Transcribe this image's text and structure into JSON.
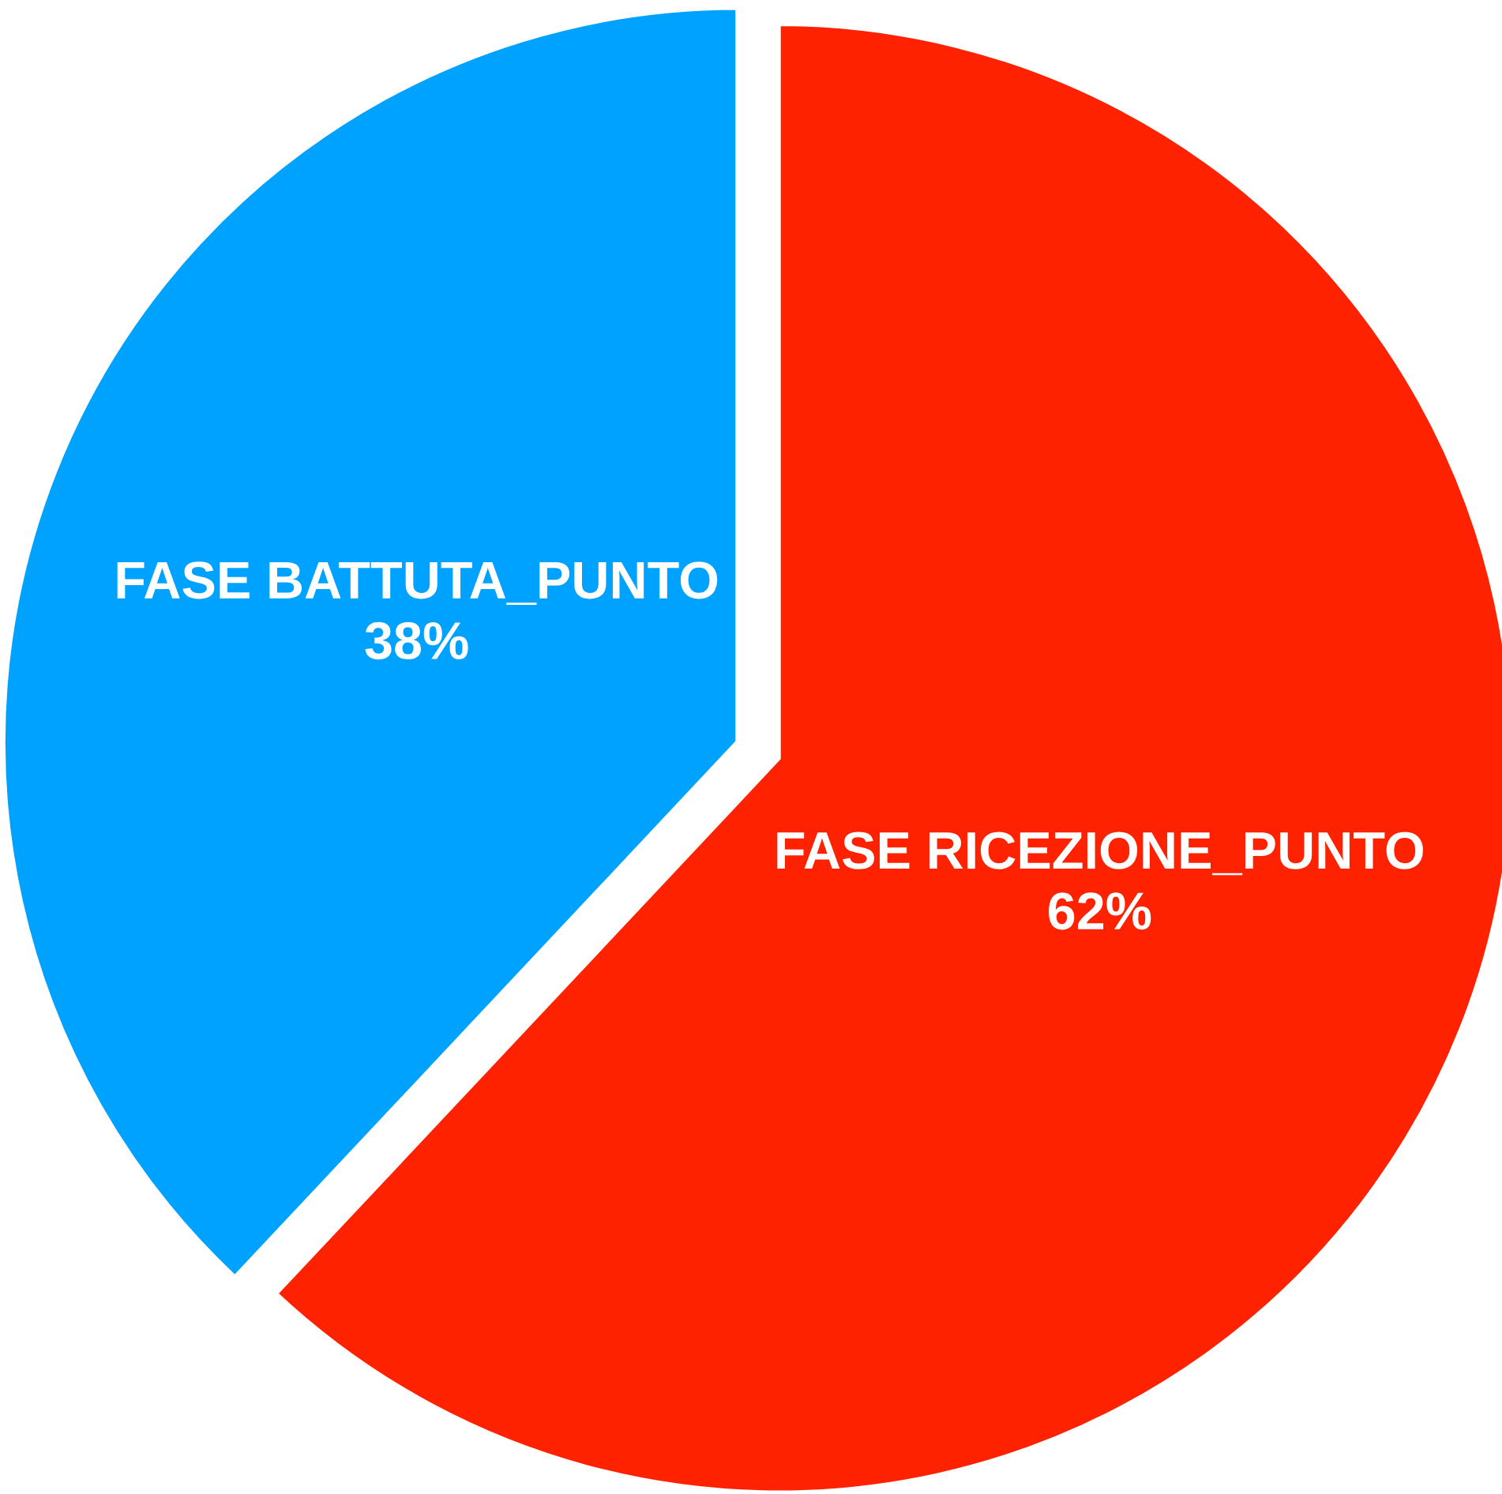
{
  "chart_data": {
    "type": "pie",
    "categories": [
      "FASE RICEZIONE_PUNTO",
      "FASE BATTUTA_PUNTO"
    ],
    "values": [
      62,
      38
    ],
    "value_labels": [
      "62%",
      "38%"
    ],
    "colors": [
      "#ff2200",
      "#00a2ff"
    ],
    "legend": false
  }
}
